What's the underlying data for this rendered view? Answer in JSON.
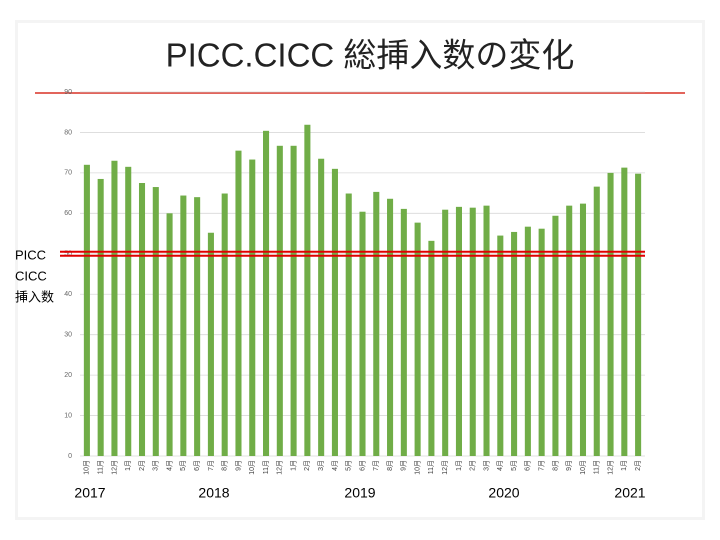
{
  "chart_data": {
    "type": "bar",
    "title": "PICC.CICC 総挿入数の変化",
    "ylabel_lines": [
      "PICC",
      "CICC",
      "挿入数"
    ],
    "categories": [
      "10月",
      "11月",
      "12月",
      "1月",
      "2月",
      "3月",
      "4月",
      "5月",
      "6月",
      "7月",
      "8月",
      "9月",
      "10月",
      "11月",
      "12月",
      "1月",
      "2月",
      "3月",
      "4月",
      "5月",
      "6月",
      "7月",
      "8月",
      "9月",
      "10月",
      "11月",
      "12月",
      "1月",
      "2月",
      "3月",
      "4月",
      "5月",
      "6月",
      "7月",
      "8月",
      "9月",
      "10月",
      "11月",
      "12月",
      "1月",
      "2月"
    ],
    "values": [
      72,
      68.5,
      73,
      71.5,
      67.5,
      66.5,
      60,
      64.4,
      64,
      55.2,
      64.9,
      75.5,
      73.3,
      80.4,
      76.7,
      76.7,
      81.9,
      73.5,
      71,
      64.9,
      60.4,
      65.3,
      63.6,
      61.1,
      57.7,
      53.2,
      60.9,
      61.6,
      61.4,
      61.9,
      54.5,
      55.4,
      56.7,
      56.2,
      59.4,
      61.9,
      62.4,
      66.6,
      70,
      71.3,
      69.8
    ],
    "color": "#70ad47",
    "year_labels": [
      "2017",
      "2018",
      "2019",
      "2020",
      "2021"
    ],
    "ylim": [
      0,
      90
    ],
    "yticks": [
      0,
      10,
      20,
      30,
      40,
      50,
      60,
      70,
      80,
      90
    ],
    "grid": true,
    "reference_line": {
      "value": 50,
      "color": "#e00000"
    }
  }
}
